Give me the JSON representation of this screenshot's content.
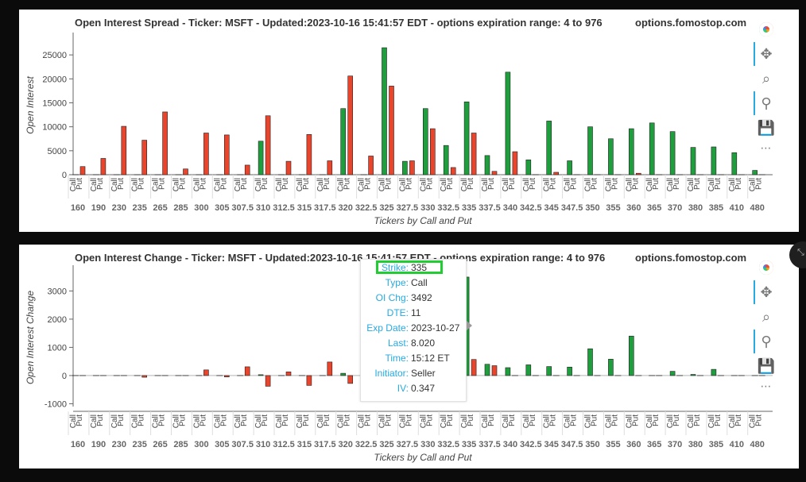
{
  "charts": [
    {
      "id": "spread",
      "title": "Open Interest Spread - Ticker: MSFT - Updated:2023-10-16 15:41:57 EDT - options expiration range: 4 to 976",
      "site": "options.fomostop.com",
      "ylabel": "Open Interest",
      "xlabel": "Tickers by Call and Put",
      "yticks": [
        0,
        5000,
        10000,
        15000,
        20000,
        25000
      ],
      "ylim": [
        0,
        29000
      ]
    },
    {
      "id": "change",
      "title": "Open Interest Change - Ticker: MSFT - Updated:2023-10-16 15:41:57 EDT - options expiration range: 4 to 976",
      "site": "options.fomostop.com",
      "ylabel": "Open Interest Change",
      "xlabel": "Tickers by Call and Put",
      "yticks": [
        -1000,
        0,
        1000,
        2000,
        3000
      ],
      "ylim": [
        -1100,
        3800
      ]
    }
  ],
  "chart_data": [
    {
      "type": "bar",
      "title": "Open Interest Spread - Ticker: MSFT - Updated:2023-10-16 15:41:57 EDT - options expiration range: 4 to 976",
      "xlabel": "Tickers by Call and Put",
      "ylabel": "Open Interest",
      "ylim": [
        0,
        29000
      ],
      "categories": [
        "160",
        "190",
        "230",
        "235",
        "265",
        "285",
        "300",
        "305",
        "307.5",
        "310",
        "312.5",
        "315",
        "317.5",
        "320",
        "322.5",
        "325",
        "327.5",
        "330",
        "332.5",
        "335",
        "337.5",
        "340",
        "342.5",
        "345",
        "347.5",
        "350",
        "355",
        "360",
        "365",
        "370",
        "380",
        "385",
        "410",
        "480"
      ],
      "sub_labels": [
        "Call",
        "Put"
      ],
      "series": [
        {
          "name": "Call",
          "color": "#1e9e3c",
          "values": [
            0,
            0,
            0,
            0,
            0,
            0,
            0,
            0,
            0,
            7000,
            0,
            0,
            0,
            13800,
            0,
            26500,
            2800,
            13800,
            6100,
            15200,
            4000,
            21400,
            3100,
            11200,
            2900,
            10000,
            7500,
            9600,
            10800,
            9000,
            5700,
            5800,
            4600,
            900
          ]
        },
        {
          "name": "Put",
          "color": "#e8452c",
          "values": [
            1700,
            3400,
            10100,
            7200,
            13100,
            1200,
            8700,
            8300,
            2000,
            12300,
            2800,
            8400,
            2900,
            20600,
            3900,
            18500,
            2900,
            9600,
            1500,
            8700,
            700,
            4800,
            0,
            500,
            0,
            0,
            0,
            300,
            0,
            0,
            0,
            0,
            0,
            0
          ]
        }
      ]
    },
    {
      "type": "bar",
      "title": "Open Interest Change - Ticker: MSFT - Updated:2023-10-16 15:41:57 EDT - options expiration range: 4 to 976",
      "xlabel": "Tickers by Call and Put",
      "ylabel": "Open Interest Change",
      "ylim": [
        -1100,
        3800
      ],
      "categories": [
        "160",
        "190",
        "230",
        "235",
        "265",
        "285",
        "300",
        "305",
        "307.5",
        "310",
        "312.5",
        "315",
        "317.5",
        "320",
        "322.5",
        "325",
        "327.5",
        "330",
        "332.5",
        "335",
        "337.5",
        "340",
        "342.5",
        "345",
        "347.5",
        "350",
        "355",
        "360",
        "365",
        "370",
        "380",
        "385",
        "410",
        "480"
      ],
      "sub_labels": [
        "Call",
        "Put"
      ],
      "series": [
        {
          "name": "Call",
          "color": "#1e9e3c",
          "values": [
            0,
            0,
            0,
            0,
            0,
            0,
            0,
            0,
            0,
            30,
            0,
            0,
            0,
            80,
            0,
            0,
            0,
            0,
            0,
            3492,
            400,
            280,
            380,
            320,
            300,
            950,
            580,
            1400,
            0,
            150,
            40,
            220,
            0,
            0
          ]
        },
        {
          "name": "Put",
          "color": "#e8452c",
          "values": [
            0,
            0,
            0,
            -60,
            0,
            0,
            200,
            -50,
            310,
            -380,
            130,
            -350,
            480,
            -280,
            0,
            0,
            0,
            0,
            0,
            570,
            350,
            0,
            0,
            0,
            0,
            0,
            0,
            0,
            0,
            0,
            0,
            0,
            0,
            0
          ]
        }
      ]
    }
  ],
  "tooltip": {
    "rows": [
      {
        "key": "Strike:",
        "value": "335"
      },
      {
        "key": "Type:",
        "value": "Call"
      },
      {
        "key": "OI Chg:",
        "value": "3492"
      },
      {
        "key": "DTE:",
        "value": "11"
      },
      {
        "key": "Exp Date:",
        "value": "2023-10-27"
      },
      {
        "key": "Last:",
        "value": "8.020"
      },
      {
        "key": "Time:",
        "value": "15:12 ET"
      },
      {
        "key": "Initiator:",
        "value": "Seller"
      },
      {
        "key": "IV:",
        "value": "0.347"
      }
    ]
  },
  "toolbar": {
    "tools": [
      {
        "name": "bokeh-logo-icon",
        "glyph": ""
      },
      {
        "name": "pan-tool-icon",
        "glyph": "✥"
      },
      {
        "name": "box-zoom-tool-icon",
        "glyph": "⌕"
      },
      {
        "name": "wheel-zoom-tool-icon",
        "glyph": "⚲"
      },
      {
        "name": "save-tool-icon",
        "glyph": "💾"
      },
      {
        "name": "more-tools-icon",
        "glyph": "⋯"
      }
    ]
  },
  "colors": {
    "call": "#1e9e3c",
    "put": "#e8452c",
    "accent": "#26aae1",
    "highlight": "#22cc33"
  }
}
